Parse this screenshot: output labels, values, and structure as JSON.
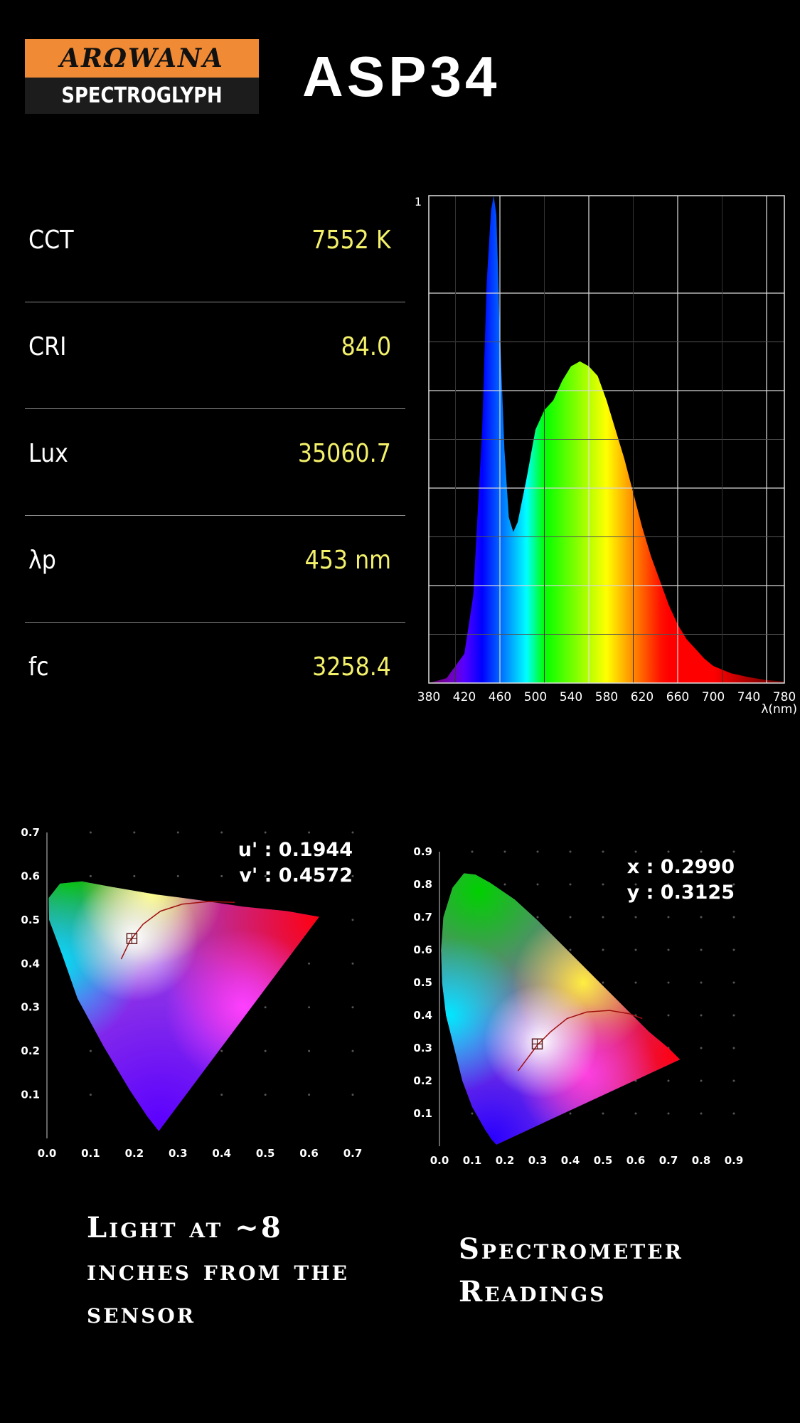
{
  "header": {
    "brand": "ARΩWANA",
    "brand_sub": "SPECTROGLYPH",
    "model": "ASP34"
  },
  "metrics": [
    {
      "label": "CCT",
      "value": "7552 K"
    },
    {
      "label": "CRI",
      "value": "84.0"
    },
    {
      "label": "Lux",
      "value": "35060.7"
    },
    {
      "label": "λp",
      "value": "453 nm"
    },
    {
      "label": "fc",
      "value": "3258.4"
    }
  ],
  "captions": {
    "left": "Light at ~8 inches from the sensor",
    "right": "Spectrometer Readings"
  },
  "chart_data": [
    {
      "type": "area",
      "title": "",
      "xlabel": "λ(nm)",
      "ylabel": "",
      "xlim": [
        380,
        780
      ],
      "ylim": [
        0,
        1
      ],
      "x_ticks": [
        "380",
        "420",
        "460",
        "500",
        "540",
        "580",
        "620",
        "660",
        "700",
        "740",
        "780"
      ],
      "y_ticks": [
        "1"
      ],
      "x": [
        380,
        400,
        420,
        430,
        440,
        445,
        450,
        453,
        456,
        460,
        465,
        470,
        475,
        480,
        490,
        500,
        510,
        520,
        530,
        540,
        550,
        560,
        570,
        580,
        590,
        600,
        610,
        620,
        630,
        640,
        650,
        660,
        670,
        680,
        690,
        700,
        720,
        740,
        760,
        780
      ],
      "values": [
        0.0,
        0.01,
        0.06,
        0.18,
        0.52,
        0.82,
        0.97,
        1.0,
        0.96,
        0.72,
        0.48,
        0.34,
        0.31,
        0.33,
        0.42,
        0.52,
        0.56,
        0.58,
        0.62,
        0.65,
        0.66,
        0.65,
        0.63,
        0.58,
        0.52,
        0.46,
        0.39,
        0.32,
        0.26,
        0.21,
        0.16,
        0.12,
        0.09,
        0.07,
        0.05,
        0.035,
        0.02,
        0.012,
        0.006,
        0.003
      ],
      "grid": true
    },
    {
      "type": "scatter",
      "title": "",
      "xlim": [
        0,
        0.7
      ],
      "ylim": [
        0,
        0.7
      ],
      "x_ticks": [
        "0.0",
        "0.1",
        "0.2",
        "0.3",
        "0.4",
        "0.5",
        "0.6",
        "0.7"
      ],
      "y_ticks": [
        "0.1",
        "0.2",
        "0.3",
        "0.4",
        "0.5",
        "0.6",
        "0.7"
      ],
      "points": [
        {
          "x": 0.1944,
          "y": 0.4572
        }
      ],
      "readout": [
        "u' : 0.1944",
        "v' : 0.4572"
      ],
      "grid": true
    },
    {
      "type": "scatter",
      "title": "",
      "xlim": [
        0,
        0.9
      ],
      "ylim": [
        0,
        0.9
      ],
      "x_ticks": [
        "0.0",
        "0.1",
        "0.2",
        "0.3",
        "0.4",
        "0.5",
        "0.6",
        "0.7",
        "0.8",
        "0.9"
      ],
      "y_ticks": [
        "0.1",
        "0.2",
        "0.3",
        "0.4",
        "0.5",
        "0.6",
        "0.7",
        "0.8",
        "0.9"
      ],
      "points": [
        {
          "x": 0.299,
          "y": 0.3125
        }
      ],
      "readout": [
        "x : 0.2990",
        "y : 0.3125"
      ],
      "grid": true
    }
  ]
}
